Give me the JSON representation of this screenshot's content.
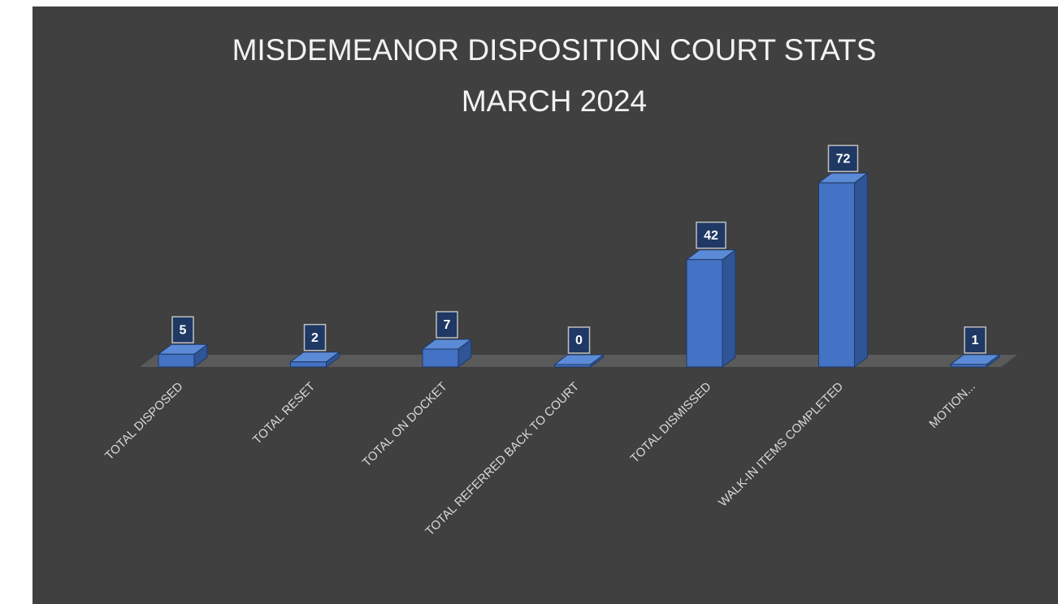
{
  "chart_data": {
    "type": "bar3d",
    "title": "MISDEMEANOR DISPOSITION COURT STATS",
    "subtitle": "MARCH 2024",
    "categories": [
      "TOTAL DISPOSED",
      "TOTAL RESET",
      "TOTAL ON DOCKET",
      "TOTAL REFERRED BACK TO COURT",
      "TOTAL DISMISSED",
      "WALK-IN ITEMS COMPLETED",
      "MOTION..."
    ],
    "values": [
      5,
      2,
      7,
      0,
      42,
      72,
      1
    ],
    "color": "#4472c4"
  }
}
